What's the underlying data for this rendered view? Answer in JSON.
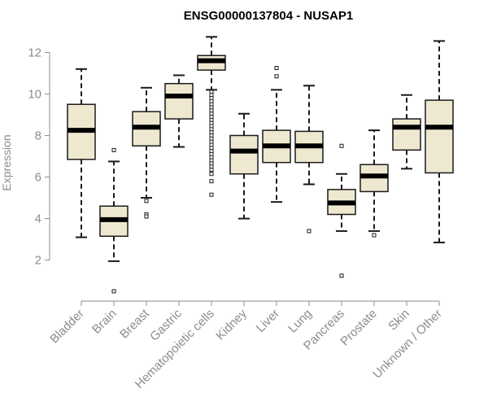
{
  "chart_data": {
    "type": "box",
    "title": "ENSG00000137804 - NUSAP1",
    "xlabel": "",
    "ylabel": "Expression",
    "ylim": [
      0.3,
      12.8
    ],
    "yticks": [
      2,
      4,
      6,
      8,
      10,
      12
    ],
    "categories": [
      "Bladder",
      "Brain",
      "Breast",
      "Gastric",
      "Hematopoietic cells",
      "Kidney",
      "Liver",
      "Lung",
      "Pancreas",
      "Prostate",
      "Skin",
      "Unknown / Other"
    ],
    "boxes": [
      {
        "category": "Bladder",
        "whisker_low": 3.1,
        "q1": 6.85,
        "median": 8.25,
        "q3": 9.5,
        "whisker_high": 11.2,
        "outliers": []
      },
      {
        "category": "Brain",
        "whisker_low": 1.95,
        "q1": 3.15,
        "median": 3.95,
        "q3": 4.6,
        "whisker_high": 6.75,
        "outliers": [
          7.3,
          0.5
        ]
      },
      {
        "category": "Breast",
        "whisker_low": 5.0,
        "q1": 7.5,
        "median": 8.4,
        "q3": 9.15,
        "whisker_high": 10.3,
        "outliers": [
          4.85,
          4.2,
          4.1
        ]
      },
      {
        "category": "Gastric",
        "whisker_low": 7.45,
        "q1": 8.8,
        "median": 9.9,
        "q3": 10.5,
        "whisker_high": 10.9,
        "outliers": []
      },
      {
        "category": "Hematopoietic cells",
        "whisker_low": 10.2,
        "q1": 11.15,
        "median": 11.6,
        "q3": 11.85,
        "whisker_high": 12.75,
        "outliers": [
          10.1,
          9.95,
          9.8,
          9.65,
          9.5,
          9.35,
          9.2,
          9.05,
          8.9,
          8.75,
          8.6,
          8.45,
          8.3,
          8.15,
          8.0,
          7.85,
          7.7,
          7.55,
          7.4,
          7.25,
          7.1,
          6.95,
          6.8,
          6.65,
          6.5,
          6.35,
          6.15,
          5.8,
          5.15
        ]
      },
      {
        "category": "Kidney",
        "whisker_low": 4.0,
        "q1": 6.15,
        "median": 7.25,
        "q3": 8.0,
        "whisker_high": 9.05,
        "outliers": []
      },
      {
        "category": "Liver",
        "whisker_low": 4.8,
        "q1": 6.7,
        "median": 7.5,
        "q3": 8.25,
        "whisker_high": 10.2,
        "outliers": [
          11.25,
          10.85
        ]
      },
      {
        "category": "Lung",
        "whisker_low": 5.65,
        "q1": 6.7,
        "median": 7.5,
        "q3": 8.2,
        "whisker_high": 10.4,
        "outliers": [
          3.4
        ]
      },
      {
        "category": "Pancreas",
        "whisker_low": 3.4,
        "q1": 4.2,
        "median": 4.75,
        "q3": 5.4,
        "whisker_high": 6.15,
        "outliers": [
          7.5,
          1.25
        ]
      },
      {
        "category": "Prostate",
        "whisker_low": 3.4,
        "q1": 5.3,
        "median": 6.05,
        "q3": 6.6,
        "whisker_high": 8.25,
        "outliers": [
          3.2
        ]
      },
      {
        "category": "Skin",
        "whisker_low": 6.4,
        "q1": 7.3,
        "median": 8.4,
        "q3": 8.8,
        "whisker_high": 9.95,
        "outliers": []
      },
      {
        "category": "Unknown / Other",
        "whisker_low": 2.85,
        "q1": 6.2,
        "median": 8.4,
        "q3": 9.7,
        "whisker_high": 12.55,
        "outliers": []
      }
    ],
    "colors": {
      "box_fill": "#eee8d0",
      "box_stroke": "#1a1a1a",
      "median": "#000000",
      "axis": "#8c8c8c",
      "tick_label": "#8c8c8c",
      "title": "#000000"
    },
    "grid": false,
    "legend": "none"
  }
}
